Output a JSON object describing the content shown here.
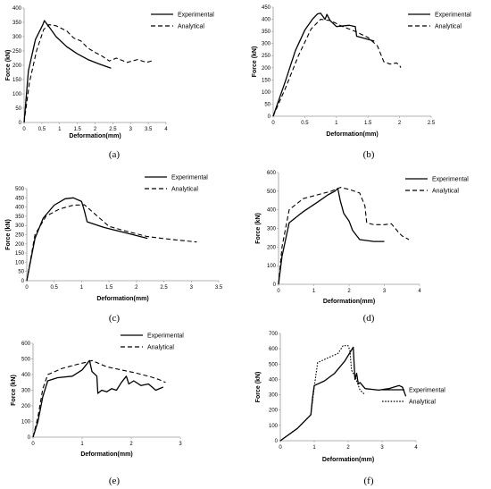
{
  "figure": {
    "legend_experimental": "Experimental",
    "legend_analytical": "Analytical"
  },
  "chart_data": [
    {
      "type": "line",
      "panel": "a",
      "caption": "(a)",
      "xlabel": "Deformation(mm)",
      "ylabel": "Force (kN)",
      "xlim": [
        0,
        4
      ],
      "ylim": [
        0,
        400
      ],
      "xticks": [
        "0",
        "0.5",
        "1",
        "1.5",
        "2",
        "2.5",
        "3",
        "3.5",
        "4"
      ],
      "yticks": [
        "0",
        "50",
        "100",
        "150",
        "200",
        "250",
        "300",
        "350",
        "400"
      ],
      "legend_position": "top-right",
      "series": [
        {
          "name": "Experimental",
          "style": "solid",
          "x": [
            0,
            0.12,
            0.32,
            0.52,
            0.57,
            0.7,
            0.9,
            1.2,
            1.5,
            1.8,
            2.1,
            2.45
          ],
          "y": [
            0,
            180,
            290,
            340,
            356,
            335,
            300,
            265,
            240,
            220,
            205,
            190
          ]
        },
        {
          "name": "Analytical",
          "style": "dashed",
          "x": [
            0,
            0.15,
            0.35,
            0.55,
            0.7,
            0.9,
            1.2,
            1.4,
            1.6,
            1.8,
            2.0,
            2.2,
            2.4,
            2.6,
            2.9,
            3.2,
            3.45,
            3.6
          ],
          "y": [
            0,
            140,
            250,
            325,
            342,
            338,
            320,
            295,
            285,
            260,
            245,
            232,
            215,
            225,
            210,
            220,
            210,
            215
          ]
        }
      ]
    },
    {
      "type": "line",
      "panel": "b",
      "caption": "(b)",
      "xlabel": "Deformation(mm)",
      "ylabel": "Force (kN)",
      "xlim": [
        0,
        2.5
      ],
      "ylim": [
        0,
        450
      ],
      "xticks": [
        "0",
        "0.5",
        "1",
        "1.5",
        "2",
        "2.5"
      ],
      "yticks": [
        "0",
        "50",
        "100",
        "150",
        "200",
        "250",
        "300",
        "350",
        "400",
        "450"
      ],
      "legend_position": "top-right",
      "series": [
        {
          "name": "Experimental",
          "style": "solid",
          "x": [
            0,
            0.2,
            0.35,
            0.5,
            0.62,
            0.7,
            0.75,
            0.82,
            0.85,
            0.9,
            1.0,
            1.2,
            1.3,
            1.32,
            1.6
          ],
          "y": [
            0,
            150,
            270,
            355,
            400,
            422,
            425,
            400,
            420,
            395,
            370,
            375,
            370,
            330,
            310
          ]
        },
        {
          "name": "Analytical",
          "style": "dashed",
          "x": [
            0,
            0.2,
            0.4,
            0.6,
            0.75,
            0.9,
            1.1,
            1.3,
            1.5,
            1.65,
            1.75,
            1.85,
            1.95,
            2.0,
            2.02
          ],
          "y": [
            0,
            120,
            250,
            360,
            400,
            395,
            370,
            350,
            325,
            290,
            225,
            215,
            220,
            210,
            200
          ]
        }
      ]
    },
    {
      "type": "line",
      "panel": "c",
      "caption": "(c)",
      "xlabel": "Deformation(mm)",
      "ylabel": "Force (kN)",
      "xlim": [
        0,
        3.5
      ],
      "ylim": [
        0,
        500
      ],
      "xticks": [
        "0",
        "0.5",
        "1",
        "1.5",
        "2",
        "2.5",
        "3",
        "3.5"
      ],
      "yticks": [
        "0",
        "50",
        "100",
        "150",
        "200",
        "250",
        "300",
        "350",
        "400",
        "450",
        "500"
      ],
      "legend_position": "top-right",
      "series": [
        {
          "name": "Experimental",
          "style": "solid",
          "x": [
            0,
            0.15,
            0.3,
            0.5,
            0.7,
            0.85,
            1.0,
            1.05,
            1.1,
            1.4,
            1.8,
            2.2
          ],
          "y": [
            0,
            230,
            340,
            410,
            445,
            450,
            430,
            380,
            320,
            290,
            260,
            230
          ]
        },
        {
          "name": "Analytical",
          "style": "dashed",
          "x": [
            0,
            0.15,
            0.35,
            0.6,
            0.85,
            1.05,
            1.25,
            1.5,
            1.8,
            2.2,
            2.6,
            3.1
          ],
          "y": [
            0,
            250,
            350,
            390,
            410,
            412,
            360,
            295,
            270,
            240,
            225,
            210
          ]
        }
      ]
    },
    {
      "type": "line",
      "panel": "d",
      "caption": "(d)",
      "xlabel": "Deformation(mm)",
      "ylabel": "Force (kN)",
      "xlim": [
        0,
        4
      ],
      "ylim": [
        0,
        600
      ],
      "xticks": [
        "0",
        "1",
        "2",
        "3",
        "4"
      ],
      "yticks": [
        "0",
        "100",
        "200",
        "300",
        "400",
        "500",
        "600"
      ],
      "legend_position": "top-right",
      "series": [
        {
          "name": "Experimental",
          "style": "solid",
          "x": [
            0,
            0.1,
            0.3,
            0.7,
            1.1,
            1.4,
            1.6,
            1.68,
            1.75,
            1.85,
            2.0,
            2.1,
            2.3,
            2.7,
            3.0
          ],
          "y": [
            0,
            150,
            330,
            390,
            440,
            480,
            500,
            515,
            450,
            380,
            340,
            290,
            240,
            230,
            230
          ]
        },
        {
          "name": "Analytical",
          "style": "dashed",
          "x": [
            0,
            0.1,
            0.3,
            0.7,
            1.1,
            1.5,
            1.75,
            2.0,
            2.3,
            2.45,
            2.5,
            2.7,
            3.0,
            3.2,
            3.4,
            3.5,
            3.7
          ],
          "y": [
            0,
            200,
            400,
            460,
            480,
            500,
            520,
            510,
            490,
            420,
            330,
            320,
            320,
            325,
            280,
            260,
            240
          ]
        }
      ]
    },
    {
      "type": "line",
      "panel": "e",
      "caption": "(e)",
      "xlabel": "Deformation(mm)",
      "ylabel": "Force (kN)",
      "xlim": [
        0,
        3
      ],
      "ylim": [
        0,
        600
      ],
      "xticks": [
        "0",
        "1",
        "2",
        "3"
      ],
      "yticks": [
        "0",
        "100",
        "200",
        "300",
        "400",
        "500",
        "600"
      ],
      "legend_position": "top-right",
      "series": [
        {
          "name": "Experimental",
          "style": "solid",
          "x": [
            0,
            0.1,
            0.2,
            0.3,
            0.5,
            0.8,
            1.0,
            1.1,
            1.15,
            1.2,
            1.3,
            1.32,
            1.4,
            1.5,
            1.6,
            1.7,
            1.8,
            1.9,
            1.95,
            2.05,
            2.2,
            2.35,
            2.5,
            2.65
          ],
          "y": [
            0,
            100,
            260,
            360,
            380,
            390,
            430,
            470,
            490,
            420,
            390,
            280,
            300,
            290,
            310,
            300,
            350,
            390,
            340,
            360,
            330,
            340,
            300,
            320
          ]
        },
        {
          "name": "Analytical",
          "style": "dashed",
          "x": [
            0,
            0.1,
            0.2,
            0.3,
            0.6,
            0.9,
            1.1,
            1.2,
            1.5,
            1.8,
            2.1,
            2.4,
            2.55,
            2.7
          ],
          "y": [
            0,
            130,
            310,
            400,
            440,
            465,
            480,
            490,
            450,
            430,
            410,
            385,
            370,
            350
          ]
        }
      ]
    },
    {
      "type": "line",
      "panel": "f",
      "caption": "(f)",
      "xlabel": "Deformation(mm)",
      "ylabel": "Force (kN)",
      "xlim": [
        0,
        4
      ],
      "ylim": [
        0,
        700
      ],
      "xticks": [
        "0",
        "1",
        "2",
        "3",
        "4"
      ],
      "yticks": [
        "0",
        "100",
        "200",
        "300",
        "400",
        "500",
        "600",
        "700"
      ],
      "legend_position": "bottom-right",
      "series": [
        {
          "name": "Experimental",
          "style": "solid",
          "x": [
            0,
            0.5,
            0.9,
            0.95,
            1.0,
            1.3,
            1.6,
            1.9,
            2.15,
            2.2,
            2.25,
            2.3,
            2.35,
            2.5,
            2.9,
            3.2,
            3.5,
            3.6,
            3.7
          ],
          "y": [
            0,
            80,
            170,
            280,
            360,
            390,
            440,
            520,
            610,
            400,
            440,
            370,
            380,
            340,
            330,
            340,
            360,
            350,
            290
          ]
        },
        {
          "name": "Analytical",
          "style": "dotted",
          "x": [
            0,
            0.5,
            0.9,
            1.0,
            1.1,
            1.4,
            1.7,
            1.85,
            2.0,
            2.05,
            2.1,
            2.2,
            2.35,
            2.5
          ],
          "y": [
            0,
            80,
            170,
            350,
            510,
            540,
            570,
            620,
            620,
            590,
            460,
            420,
            330,
            300
          ]
        }
      ]
    }
  ]
}
